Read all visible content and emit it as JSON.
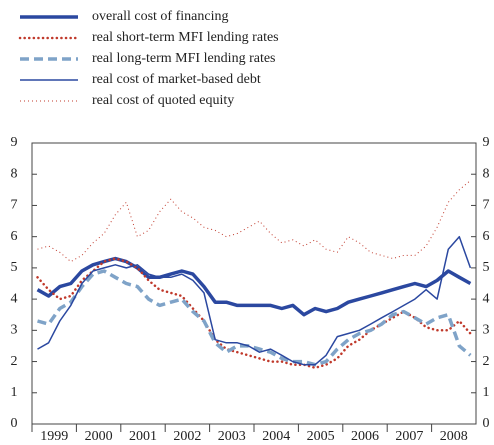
{
  "chart_data": {
    "type": "line",
    "categories": [
      "1999",
      null,
      null,
      null,
      "2000",
      null,
      null,
      null,
      "2001",
      null,
      null,
      null,
      "2002",
      null,
      null,
      null,
      "2003",
      null,
      null,
      null,
      "2004",
      null,
      null,
      null,
      "2005",
      null,
      null,
      null,
      "2006",
      null,
      null,
      null,
      "2007",
      null,
      null,
      null,
      "2008",
      null,
      null,
      null
    ],
    "series": [
      {
        "name": "overall cost of financing",
        "color": "#2b48a0",
        "values": [
          4.3,
          4.1,
          4.4,
          4.5,
          4.9,
          5.1,
          5.2,
          5.3,
          5.2,
          5.0,
          4.7,
          4.7,
          4.8,
          4.9,
          4.8,
          4.4,
          3.9,
          3.9,
          3.8,
          3.8,
          3.8,
          3.8,
          3.7,
          3.8,
          3.5,
          3.7,
          3.6,
          3.7,
          3.9,
          4.0,
          4.1,
          4.2,
          4.3,
          4.4,
          4.5,
          4.4,
          4.6,
          4.9,
          4.7,
          4.5
        ]
      },
      {
        "name": "real short-term MFI lending rates",
        "color": "#c0392b",
        "values": [
          4.7,
          4.3,
          4.0,
          4.1,
          4.6,
          4.9,
          5.2,
          5.3,
          5.2,
          5.0,
          4.6,
          4.3,
          4.2,
          4.1,
          3.7,
          3.3,
          2.7,
          2.4,
          2.3,
          2.2,
          2.1,
          2.0,
          2.0,
          1.9,
          1.9,
          1.8,
          1.9,
          2.1,
          2.5,
          2.7,
          3.0,
          3.2,
          3.4,
          3.6,
          3.4,
          3.1,
          3.0,
          3.0,
          3.3,
          2.9
        ]
      },
      {
        "name": "real long-term MFI lending rates",
        "color": "#7fa3c8",
        "values": [
          3.3,
          3.2,
          3.7,
          3.9,
          4.4,
          4.8,
          4.9,
          4.7,
          4.5,
          4.4,
          4.0,
          3.8,
          3.9,
          4.0,
          3.6,
          3.3,
          2.6,
          2.3,
          2.5,
          2.5,
          2.4,
          2.3,
          2.1,
          2.0,
          2.0,
          1.9,
          2.0,
          2.4,
          2.7,
          2.9,
          3.0,
          3.2,
          3.5,
          3.6,
          3.4,
          3.2,
          3.4,
          3.5,
          2.5,
          2.2
        ]
      },
      {
        "name": "real cost of market-based debt",
        "color": "#2b48a0",
        "values": [
          2.4,
          2.6,
          3.3,
          3.8,
          4.5,
          4.9,
          5.0,
          5.1,
          5.0,
          5.1,
          4.8,
          4.7,
          4.7,
          4.8,
          4.6,
          4.2,
          2.7,
          2.6,
          2.6,
          2.5,
          2.3,
          2.4,
          2.2,
          2.0,
          1.9,
          1.9,
          2.2,
          2.8,
          2.9,
          3.0,
          3.2,
          3.4,
          3.6,
          3.8,
          4.0,
          4.3,
          4.0,
          5.6,
          6.0,
          5.0
        ]
      },
      {
        "name": "real cost of quoted equity",
        "color": "#c0392b",
        "values": [
          5.6,
          5.7,
          5.5,
          5.2,
          5.4,
          5.8,
          6.1,
          6.7,
          7.1,
          6.0,
          6.2,
          6.8,
          7.2,
          6.8,
          6.6,
          6.3,
          6.2,
          6.0,
          6.1,
          6.3,
          6.5,
          6.1,
          5.8,
          5.9,
          5.7,
          5.9,
          5.6,
          5.5,
          6.0,
          5.8,
          5.5,
          5.4,
          5.3,
          5.4,
          5.4,
          5.7,
          6.3,
          7.1,
          7.5,
          7.8
        ]
      }
    ],
    "ylim": [
      0,
      9
    ],
    "yticks": [
      0,
      1,
      2,
      3,
      4,
      5,
      6,
      7,
      8,
      9
    ],
    "y2lim": [
      0,
      9
    ],
    "y2ticks": [
      0,
      1,
      2,
      3,
      4,
      5,
      6,
      7,
      8,
      9
    ]
  }
}
